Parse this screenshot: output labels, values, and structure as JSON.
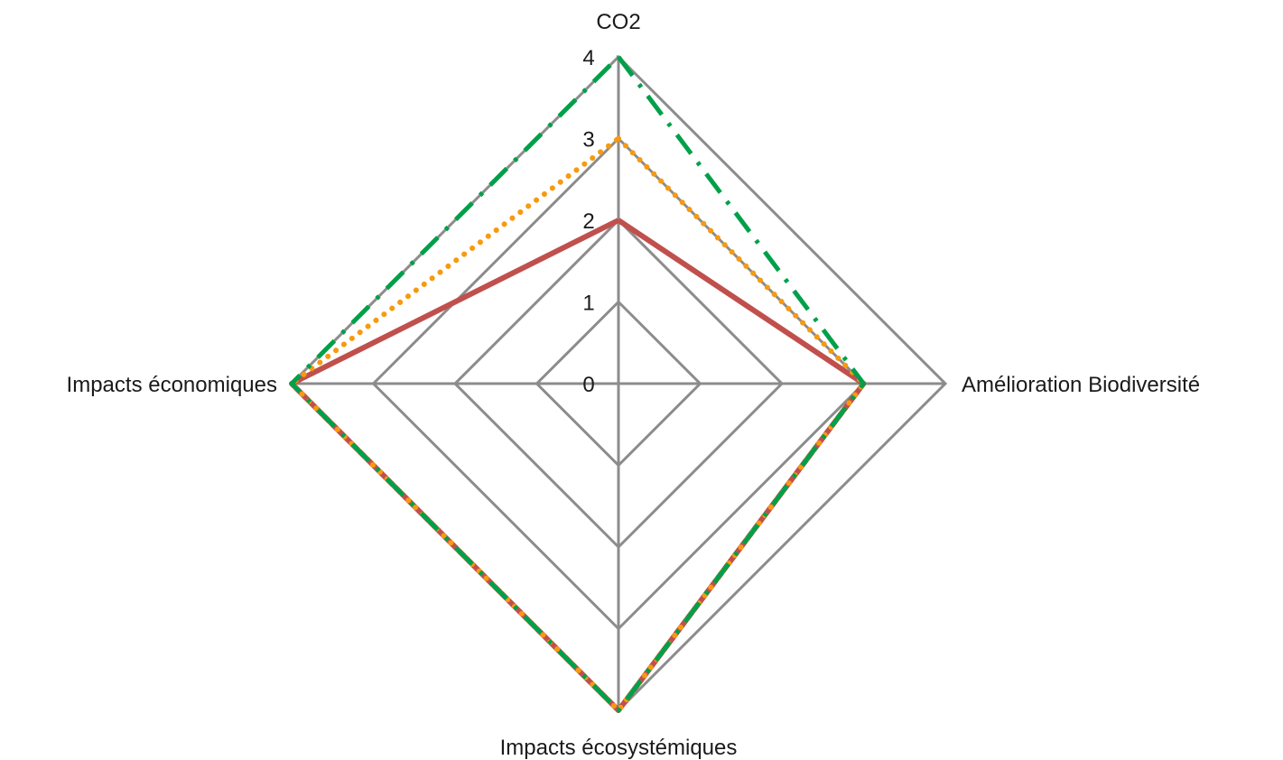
{
  "chart_data": {
    "type": "radar",
    "axes": [
      "CO2",
      "Amélioration Biodiversité",
      "Impacts écosystémiques",
      "Impacts économiques"
    ],
    "rlim": [
      0,
      4
    ],
    "ticks": [
      "0",
      "1",
      "2",
      "3",
      "4"
    ],
    "grid": true,
    "legend": "none",
    "series": [
      {
        "values": [
          2,
          3,
          4,
          4
        ],
        "color": "#c0504d",
        "style": "solid"
      },
      {
        "values": [
          3,
          3,
          4,
          4
        ],
        "color": "#f79a0f",
        "style": "dotted"
      },
      {
        "values": [
          4,
          3,
          4,
          4
        ],
        "color": "#00a04a",
        "style": "dashdot"
      }
    ],
    "colors": {
      "grid": "#8c8c8c",
      "text": "#1a1a1a"
    }
  }
}
